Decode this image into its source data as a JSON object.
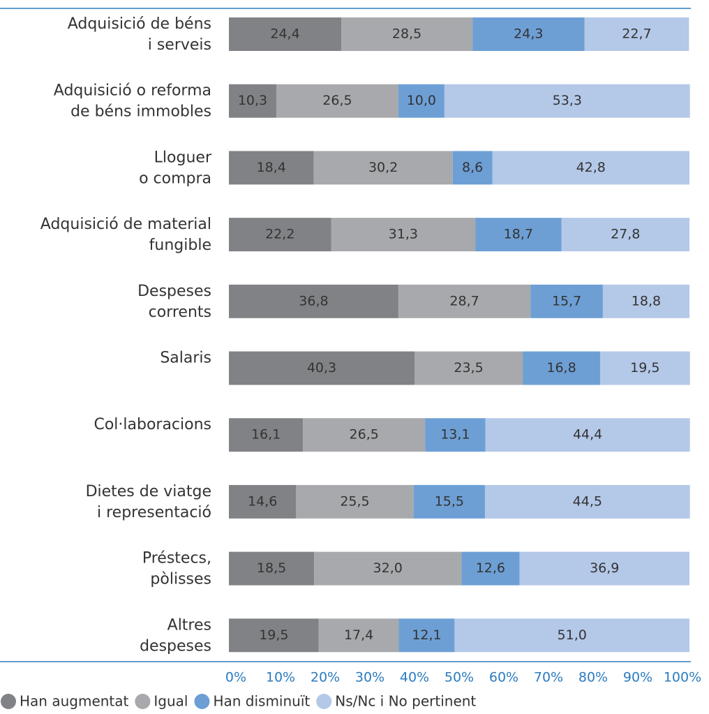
{
  "chart_data": {
    "type": "stacked-bar-horizontal",
    "categories": [
      [
        "Adquisició de béns",
        "i serveis"
      ],
      [
        "Adquisició o reforma",
        "de béns immobles"
      ],
      [
        "Lloguer",
        "o compra"
      ],
      [
        "Adquisició de material",
        "fungible"
      ],
      [
        "Despeses",
        "corrents"
      ],
      [
        "Salaris"
      ],
      [
        "Col·laboracions"
      ],
      [
        "Dietes de viatge",
        "i representació"
      ],
      [
        "Préstecs,",
        "pòlisses"
      ],
      [
        "Altres",
        "despeses"
      ]
    ],
    "series": [
      {
        "name": "Han augmentat",
        "color": "#808285",
        "values": [
          24.4,
          10.3,
          18.4,
          22.2,
          36.8,
          40.3,
          16.1,
          14.6,
          18.5,
          19.5
        ],
        "value_labels": [
          "24,4",
          "10,3",
          "18,4",
          "22,2",
          "36,8",
          "40,3",
          "16,1",
          "14,6",
          "18,5",
          "19,5"
        ]
      },
      {
        "name": "Igual",
        "color": "#a7a9ac",
        "values": [
          28.5,
          26.5,
          30.2,
          31.3,
          28.7,
          23.5,
          26.5,
          25.5,
          32.0,
          17.4
        ],
        "value_labels": [
          "28,5",
          "26,5",
          "30,2",
          "31,3",
          "28,7",
          "23,5",
          "26,5",
          "25,5",
          "32,0",
          "17,4"
        ]
      },
      {
        "name": "Han disminuït",
        "color": "#6d9fd5",
        "values": [
          24.3,
          10.0,
          8.6,
          18.7,
          15.7,
          16.8,
          13.1,
          15.5,
          12.6,
          12.1
        ],
        "value_labels": [
          "24,3",
          "10,0",
          "8,6",
          "18,7",
          "15,7",
          "16,8",
          "13,1",
          "15,5",
          "12,6",
          "12,1"
        ]
      },
      {
        "name": "Ns/Nc i No pertinent",
        "color": "#b4c8e8",
        "values": [
          22.7,
          53.3,
          42.8,
          27.8,
          18.8,
          19.5,
          44.4,
          44.5,
          36.9,
          51.0
        ],
        "value_labels": [
          "22,7",
          "53,3",
          "42,8",
          "27,8",
          "18,8",
          "19,5",
          "44,4",
          "44,5",
          "36,9",
          "51,0"
        ]
      }
    ],
    "xlim": [
      0,
      100
    ],
    "xticks": [
      {
        "value": 0,
        "label": "0%"
      },
      {
        "value": 10,
        "label": "10%"
      },
      {
        "value": 20,
        "label": "20%"
      },
      {
        "value": 30,
        "label": "30%"
      },
      {
        "value": 40,
        "label": "40%"
      },
      {
        "value": 50,
        "label": "50%"
      },
      {
        "value": 60,
        "label": "60%"
      },
      {
        "value": 70,
        "label": "70%"
      },
      {
        "value": 80,
        "label": "80%"
      },
      {
        "value": 90,
        "label": "90%"
      },
      {
        "value": 100,
        "label": "100%"
      }
    ],
    "legend": "bottom"
  }
}
